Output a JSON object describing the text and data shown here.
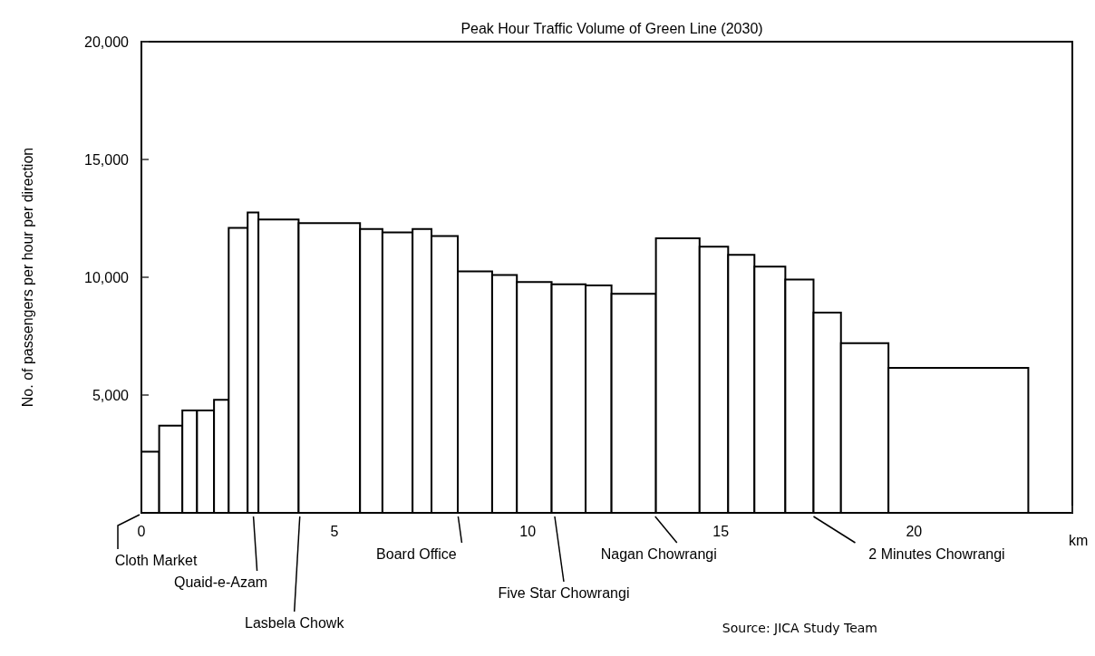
{
  "chart_data": {
    "type": "histogram",
    "title": "Peak Hour Traffic Volume of Green Line (2030)",
    "xlabel": "km",
    "ylabel": "No. of passengers per hour per direction",
    "bins": [
      0,
      0.46,
      1.06,
      1.44,
      1.88,
      2.26,
      2.75,
      3.03,
      4.07,
      5.66,
      6.24,
      7.02,
      7.51,
      8.19,
      9.08,
      9.72,
      10.62,
      11.5,
      12.17,
      13.32,
      14.45,
      15.19,
      15.87,
      16.67,
      17.4,
      18.11,
      19.34,
      22.96
    ],
    "values": [
      2600,
      3700,
      4350,
      4350,
      4800,
      12100,
      12750,
      12450,
      12300,
      12050,
      11900,
      12050,
      11750,
      10250,
      10100,
      9800,
      9700,
      9650,
      9300,
      11650,
      11300,
      10950,
      10450,
      9900,
      8500,
      7200,
      6150
    ],
    "color": "#ffffff",
    "xlim": [
      0,
      24.1
    ],
    "xticks": [
      0,
      5,
      10,
      15,
      20
    ],
    "ylim": [
      0,
      20000
    ],
    "yticks": [
      {
        "value": 0,
        "label": null
      },
      {
        "value": 5000,
        "label": "5,000"
      },
      {
        "value": 10000,
        "label": "10,000"
      },
      {
        "value": 15000,
        "label": "15,000"
      },
      {
        "value": 20000,
        "label": "20,000"
      }
    ],
    "grid": false,
    "annotations": [
      {
        "text": "Cloth Market",
        "x": 0,
        "y": 0
      },
      {
        "text": "Quaid-e-Azam",
        "x": 2.9,
        "y": 0
      },
      {
        "text": "Lasbela Chowk",
        "x": 4.1,
        "y": 0
      },
      {
        "text": "Board Office",
        "x": 8.2,
        "y": 0
      },
      {
        "text": "Five Star Chowrangi",
        "x": 10.7,
        "y": 0
      },
      {
        "text": "Nagan Chowrangi",
        "x": 13.3,
        "y": 0
      },
      {
        "text": "2 Minutes Chowrangi",
        "x": 17.4,
        "y": 0
      },
      "Source: JICA Study Team"
    ]
  }
}
